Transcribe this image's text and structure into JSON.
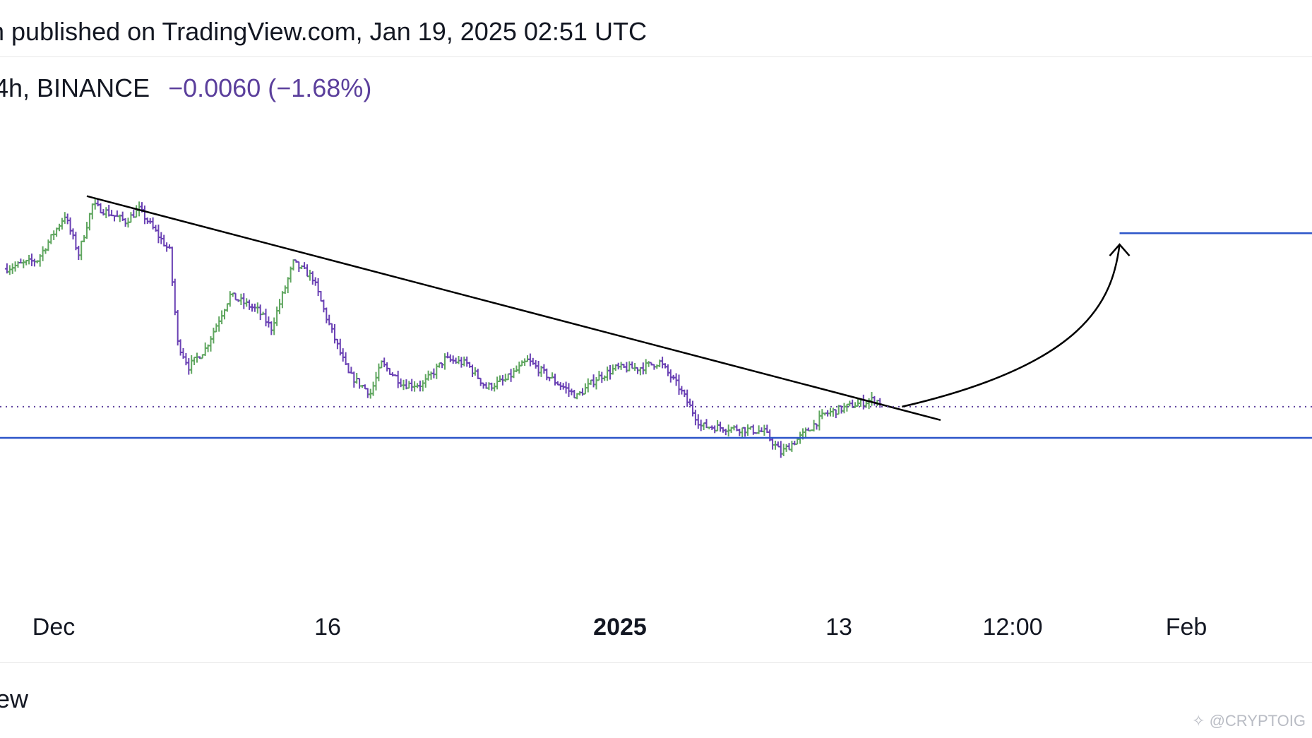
{
  "header": {
    "published_text": "n published on TradingView.com, Jan 19, 2025 02:51 UTC"
  },
  "legend": {
    "symbol_text": "4h, BINANCE",
    "change_text": "−0.0060 (−1.68%)"
  },
  "footer": {
    "brand_fragment": "ew"
  },
  "watermark": {
    "text": "@CRYPTOIG"
  },
  "colors": {
    "up_bar": "#5fa65f",
    "down_bar": "#6a41b4",
    "support_line": "#2c55c9",
    "price_line": "#5b3f9c",
    "trendline": "#000000"
  },
  "chart_data": {
    "type": "ohlc",
    "timeframe": "4h",
    "exchange": "BINANCE",
    "x_ticks": [
      {
        "label": "Dec",
        "bold": false
      },
      {
        "label": "16",
        "bold": false
      },
      {
        "label": "2025",
        "bold": true
      },
      {
        "label": "13",
        "bold": false
      },
      {
        "label": "12:00",
        "bold": false
      },
      {
        "label": "Feb",
        "bold": false
      }
    ],
    "price_path": [
      {
        "t": 0,
        "p": 0.404
      },
      {
        "t": 12,
        "p": 0.41
      },
      {
        "t": 22,
        "p": 0.44
      },
      {
        "t": 27,
        "p": 0.414
      },
      {
        "t": 32,
        "p": 0.447
      },
      {
        "t": 44,
        "p": 0.436
      },
      {
        "t": 49,
        "p": 0.444
      },
      {
        "t": 60,
        "p": 0.416
      },
      {
        "t": 63,
        "p": 0.354
      },
      {
        "t": 67,
        "p": 0.338
      },
      {
        "t": 73,
        "p": 0.35
      },
      {
        "t": 82,
        "p": 0.386
      },
      {
        "t": 92,
        "p": 0.376
      },
      {
        "t": 97,
        "p": 0.364
      },
      {
        "t": 105,
        "p": 0.408
      },
      {
        "t": 112,
        "p": 0.398
      },
      {
        "t": 117,
        "p": 0.371
      },
      {
        "t": 125,
        "p": 0.333
      },
      {
        "t": 133,
        "p": 0.32
      },
      {
        "t": 137,
        "p": 0.34
      },
      {
        "t": 145,
        "p": 0.326
      },
      {
        "t": 152,
        "p": 0.326
      },
      {
        "t": 160,
        "p": 0.343
      },
      {
        "t": 168,
        "p": 0.34
      },
      {
        "t": 175,
        "p": 0.324
      },
      {
        "t": 182,
        "p": 0.329
      },
      {
        "t": 190,
        "p": 0.342
      },
      {
        "t": 200,
        "p": 0.328
      },
      {
        "t": 208,
        "p": 0.318
      },
      {
        "t": 215,
        "p": 0.33
      },
      {
        "t": 222,
        "p": 0.337
      },
      {
        "t": 230,
        "p": 0.337
      },
      {
        "t": 238,
        "p": 0.341
      },
      {
        "t": 245,
        "p": 0.324
      },
      {
        "t": 253,
        "p": 0.298
      },
      {
        "t": 260,
        "p": 0.297
      },
      {
        "t": 268,
        "p": 0.296
      },
      {
        "t": 276,
        "p": 0.294
      },
      {
        "t": 282,
        "p": 0.28
      },
      {
        "t": 290,
        "p": 0.292
      },
      {
        "t": 298,
        "p": 0.306
      },
      {
        "t": 308,
        "p": 0.312
      },
      {
        "t": 316,
        "p": 0.316
      },
      {
        "t": 318,
        "p": 0.314
      }
    ],
    "annotations": [
      {
        "type": "descending-trendline",
        "from": {
          "t": 30,
          "p": 0.453
        },
        "to": {
          "t": 340,
          "p": 0.302
        }
      },
      {
        "type": "horizontal-support",
        "price": 0.29
      },
      {
        "type": "horizontal-dotted-last-price",
        "price": 0.311
      },
      {
        "type": "horizontal-target",
        "price": 0.428,
        "from_t": 405
      },
      {
        "type": "curved-arrow-up",
        "from": {
          "t": 326,
          "p": 0.311
        },
        "to": {
          "t": 405,
          "p": 0.428
        }
      }
    ]
  }
}
